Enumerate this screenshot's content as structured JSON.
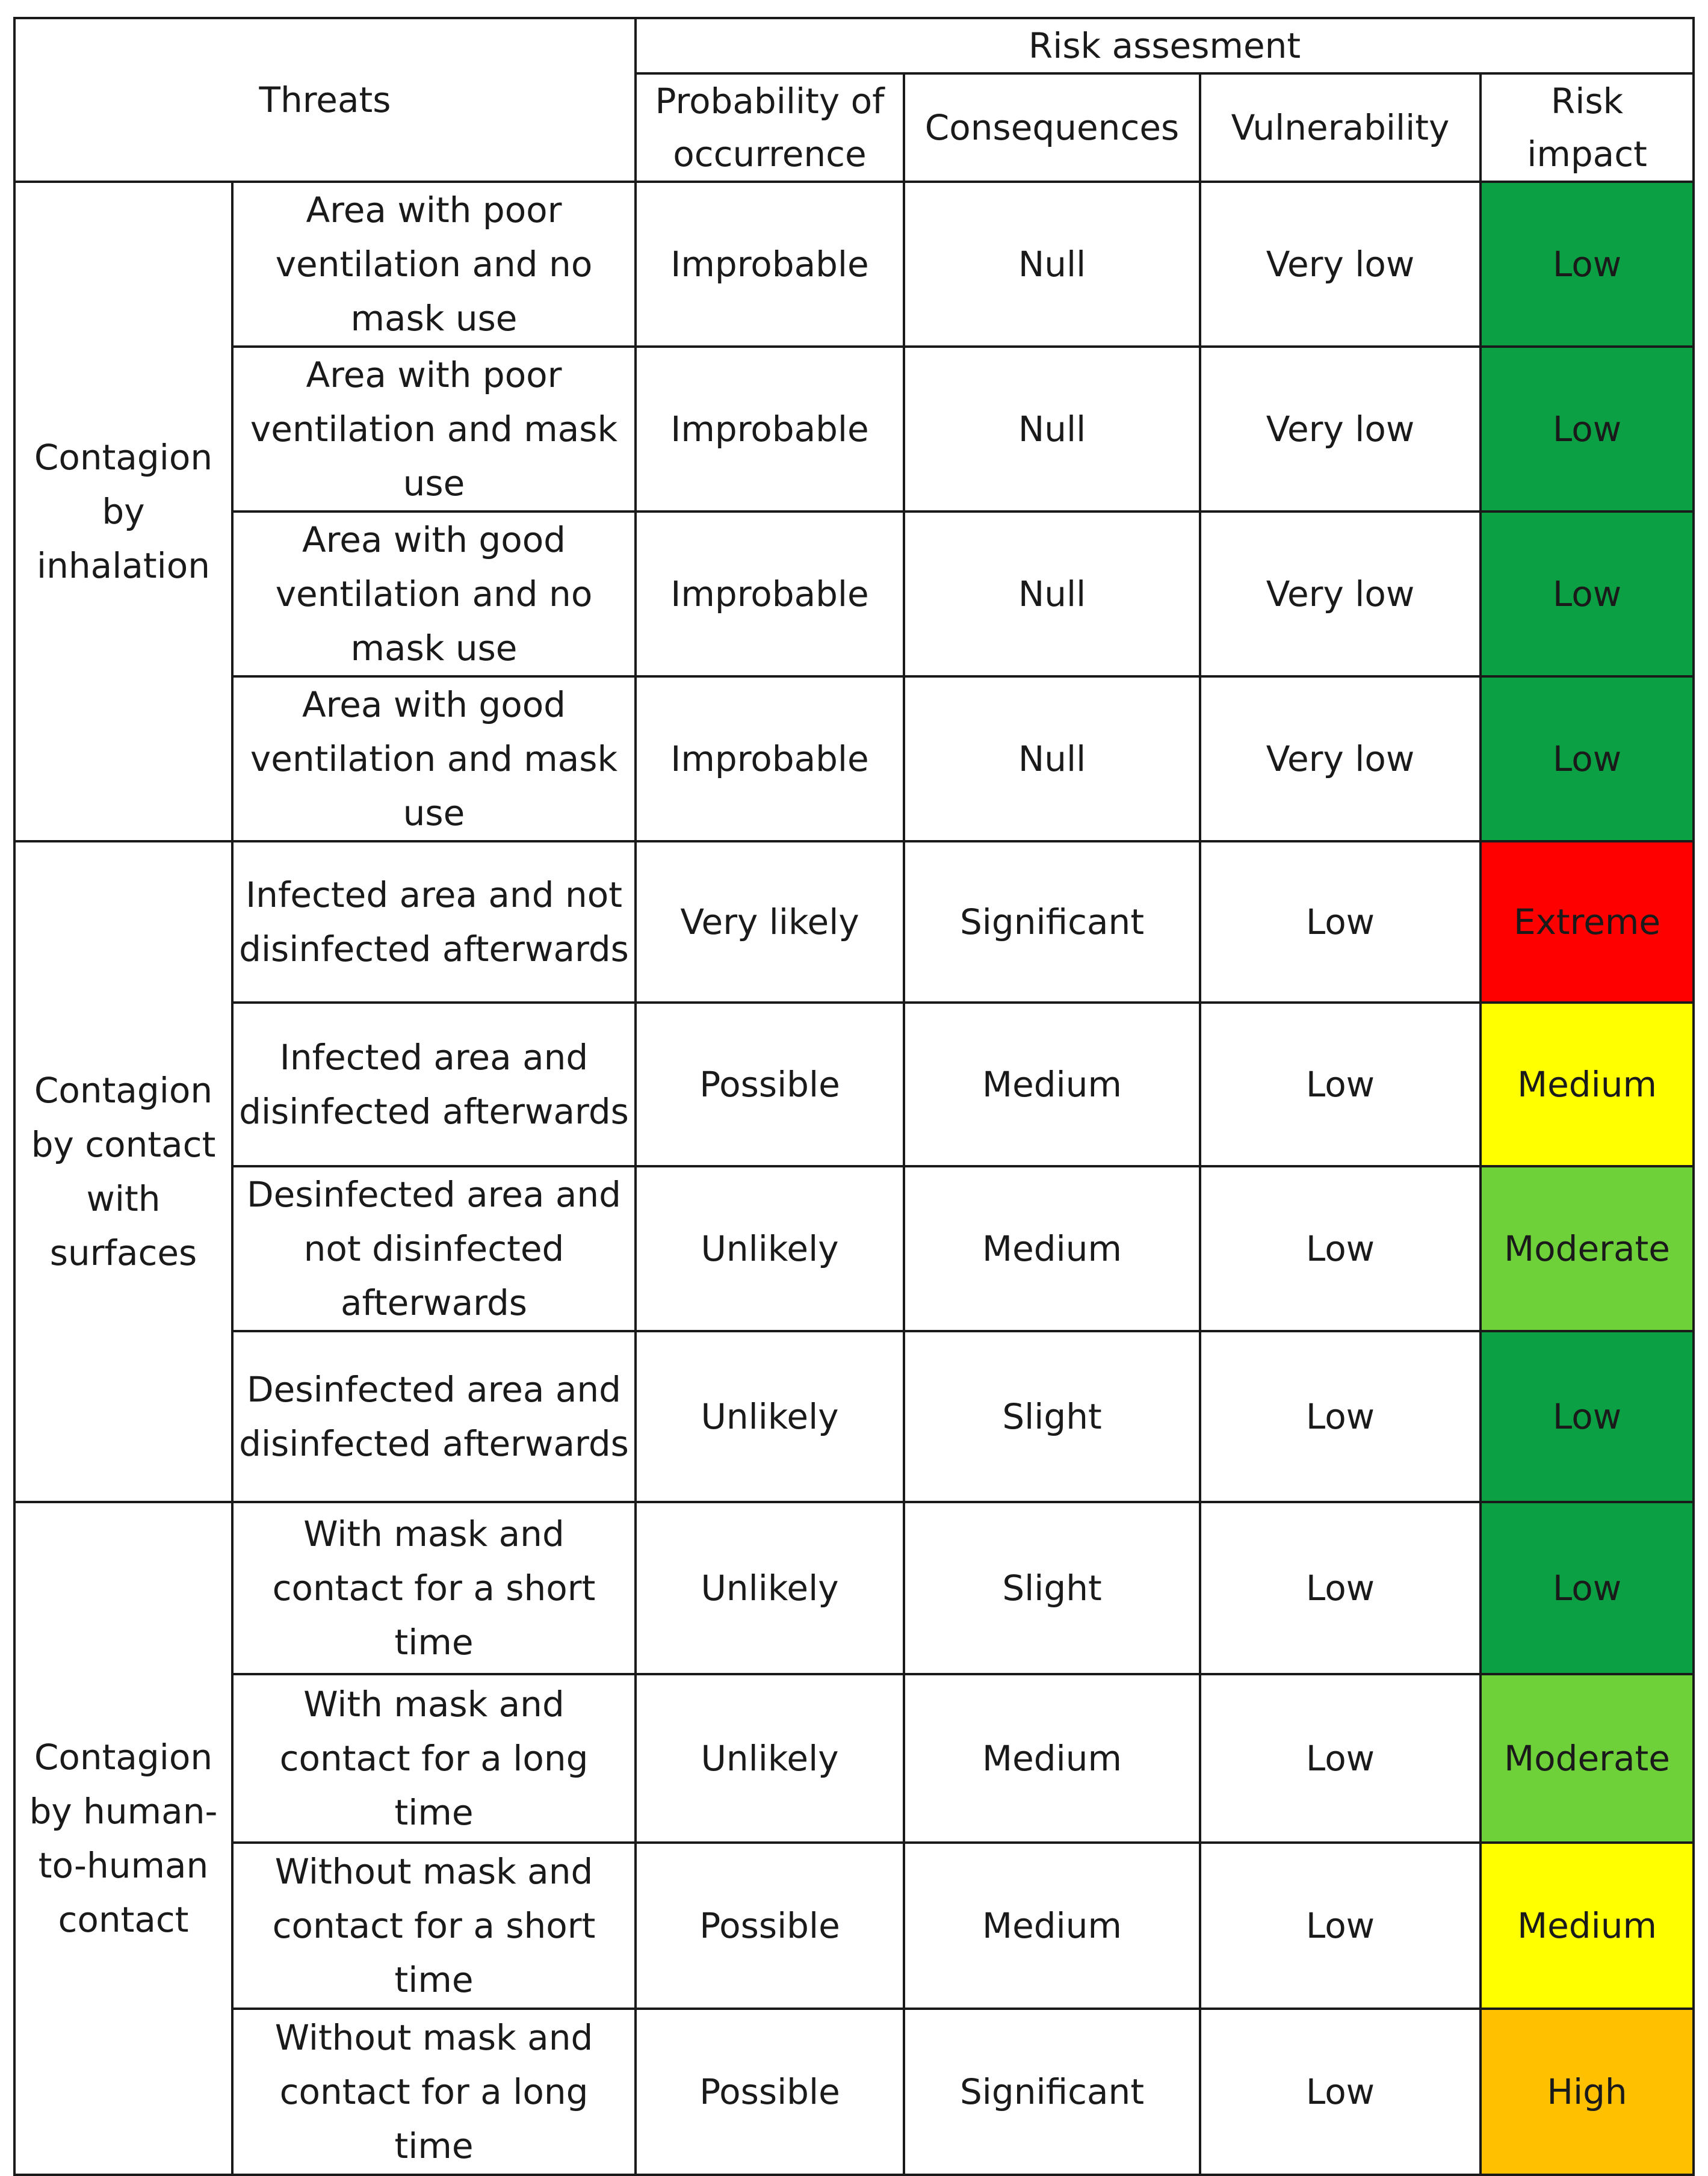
{
  "header": {
    "threats": "Threats",
    "risk_assessment": "Risk assesment",
    "probability": "Probability of occurrence",
    "consequences": "Consequences",
    "vulnerability": "Vulnerability",
    "risk_impact": "Risk impact"
  },
  "impact_colors": {
    "Low": "#0aa043",
    "Moderate": "#6fd13a",
    "Medium": "#ffff00",
    "High": "#ffc000",
    "Extreme": "#ff0000"
  },
  "groups": [
    {
      "name": "Contagion by inhalation",
      "rows": [
        {
          "threat": "Area with poor ventilation and no mask use",
          "probability": "Improbable",
          "consequences": "Null",
          "vulnerability": "Very low",
          "impact": "Low"
        },
        {
          "threat": "Area with poor ventilation and mask use",
          "probability": "Improbable",
          "consequences": "Null",
          "vulnerability": "Very low",
          "impact": "Low"
        },
        {
          "threat": "Area with good ventilation and no mask use",
          "probability": "Improbable",
          "consequences": "Null",
          "vulnerability": "Very low",
          "impact": "Low"
        },
        {
          "threat": "Area with good ventilation and mask use",
          "probability": "Improbable",
          "consequences": "Null",
          "vulnerability": "Very low",
          "impact": "Low"
        }
      ]
    },
    {
      "name": "Contagion by contact with surfaces",
      "rows": [
        {
          "threat": "Infected area and not disinfected afterwards",
          "probability": "Very likely",
          "consequences": "Significant",
          "vulnerability": "Low",
          "impact": "Extreme"
        },
        {
          "threat": "Infected area and disinfected afterwards",
          "probability": "Possible",
          "consequences": "Medium",
          "vulnerability": "Low",
          "impact": "Medium"
        },
        {
          "threat": "Desinfected area and not disinfected afterwards",
          "probability": "Unlikely",
          "consequences": "Medium",
          "vulnerability": "Low",
          "impact": "Moderate"
        },
        {
          "threat": "Desinfected area and disinfected afterwards",
          "probability": "Unlikely",
          "consequences": "Slight",
          "vulnerability": "Low",
          "impact": "Low"
        }
      ]
    },
    {
      "name": "Contagion by human-to-human contact",
      "rows": [
        {
          "threat": "With mask and contact for a short time",
          "probability": "Unlikely",
          "consequences": "Slight",
          "vulnerability": "Low",
          "impact": "Low"
        },
        {
          "threat": "With mask and contact for a long time",
          "probability": "Unlikely",
          "consequences": "Medium",
          "vulnerability": "Low",
          "impact": "Moderate"
        },
        {
          "threat": "Without mask and contact for a short time",
          "probability": "Possible",
          "consequences": "Medium",
          "vulnerability": "Low",
          "impact": "Medium"
        },
        {
          "threat": "Without mask and contact for a long time",
          "probability": "Possible",
          "consequences": "Significant",
          "vulnerability": "Low",
          "impact": "High"
        }
      ]
    }
  ]
}
